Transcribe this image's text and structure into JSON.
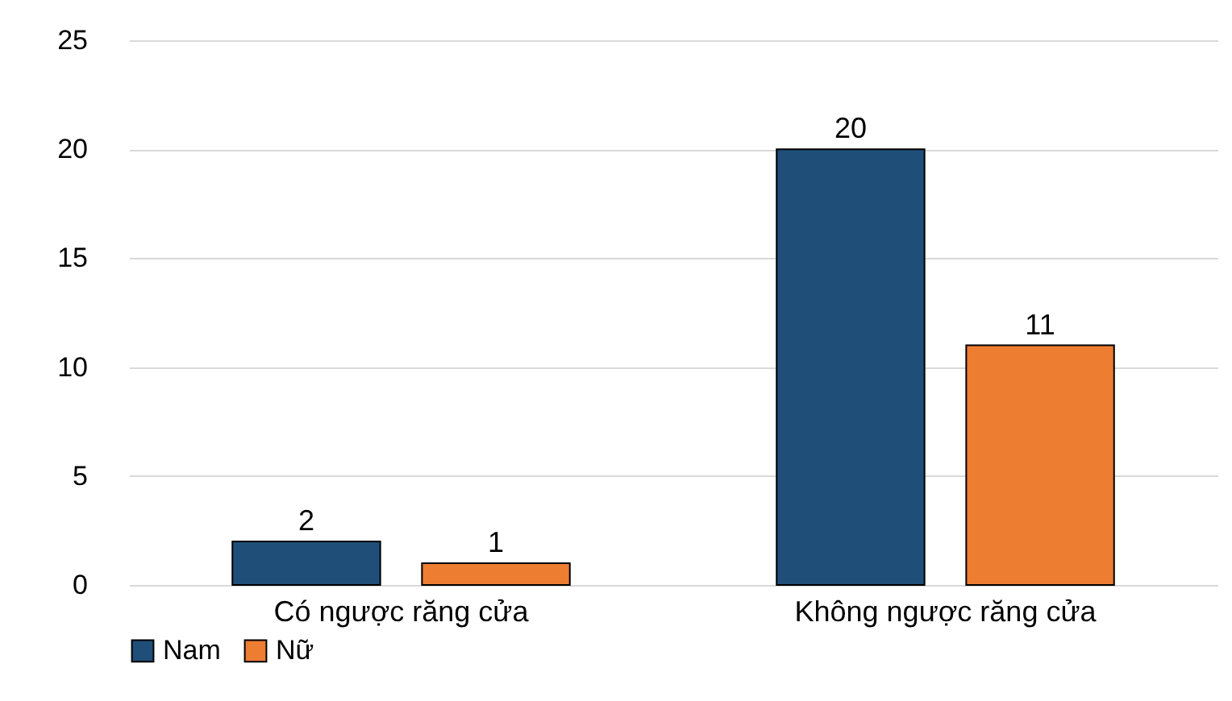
{
  "chart_data": {
    "type": "bar",
    "categories": [
      "Có ngược răng cửa",
      "Không ngược răng cửa"
    ],
    "series": [
      {
        "name": "Nam",
        "color": "#1f4e79",
        "values": [
          2,
          20
        ]
      },
      {
        "name": "Nữ",
        "color": "#ed7d31",
        "values": [
          1,
          11
        ]
      }
    ],
    "ylim": [
      0,
      25
    ],
    "yticks": [
      0,
      5,
      10,
      15,
      20,
      25
    ],
    "grid": "y",
    "legend": "bottom",
    "data_labels": true
  }
}
